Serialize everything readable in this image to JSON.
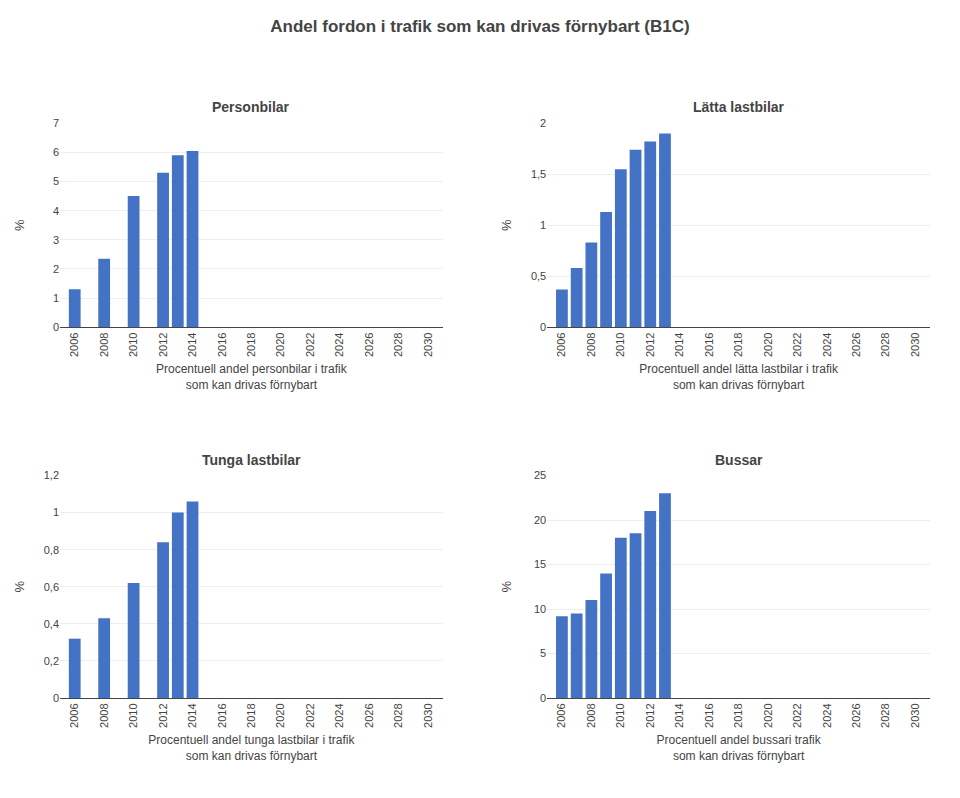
{
  "title": "Andel fordon i trafik som kan drivas förnybart (B1C)",
  "chart_data": [
    {
      "type": "bar",
      "title": "Personbilar",
      "x": [
        2006,
        2008,
        2010,
        2012,
        2013,
        2014
      ],
      "values": [
        1.3,
        2.35,
        4.5,
        5.3,
        5.9,
        6.05
      ],
      "color": "#4472C4",
      "xlim": [
        2005,
        2031
      ],
      "xticks": [
        2006,
        2008,
        2010,
        2012,
        2014,
        2016,
        2018,
        2020,
        2022,
        2024,
        2026,
        2028,
        2030
      ],
      "ylim": [
        0,
        7
      ],
      "yticks": [
        0,
        1,
        2,
        3,
        4,
        5,
        6,
        7
      ],
      "grid": "y",
      "xlabel": "Procentuell andel personbilar i trafik\nsom kan drivas förnybart",
      "ylabel": "%"
    },
    {
      "type": "bar",
      "title": "Lätta lastbilar",
      "x": [
        2006,
        2007,
        2008,
        2009,
        2010,
        2011,
        2012,
        2013
      ],
      "values": [
        0.37,
        0.58,
        0.83,
        1.13,
        1.55,
        1.74,
        1.82,
        1.9
      ],
      "color": "#4472C4",
      "xlim": [
        2005,
        2031
      ],
      "xticks": [
        2006,
        2008,
        2010,
        2012,
        2014,
        2016,
        2018,
        2020,
        2022,
        2024,
        2026,
        2028,
        2030
      ],
      "ylim": [
        0,
        2
      ],
      "yticks": [
        0,
        {
          "value": 0.5,
          "label": "0,5"
        },
        1,
        {
          "value": 1.5,
          "label": "1,5"
        },
        2
      ],
      "grid": "y",
      "xlabel": "Procentuell andel lätta lastbilar i trafik\nsom kan drivas förnybart",
      "ylabel": "%"
    },
    {
      "type": "bar",
      "title": "Tunga lastbilar",
      "x": [
        2006,
        2008,
        2010,
        2012,
        2013,
        2014
      ],
      "values": [
        0.32,
        0.43,
        0.62,
        0.84,
        1.0,
        1.06
      ],
      "color": "#4472C4",
      "xlim": [
        2005,
        2031
      ],
      "xticks": [
        2006,
        2008,
        2010,
        2012,
        2014,
        2016,
        2018,
        2020,
        2022,
        2024,
        2026,
        2028,
        2030
      ],
      "ylim": [
        0,
        1.2
      ],
      "yticks": [
        0,
        {
          "value": 0.2,
          "label": "0,2"
        },
        {
          "value": 0.4,
          "label": "0,4"
        },
        {
          "value": 0.6,
          "label": "0,6"
        },
        {
          "value": 0.8,
          "label": "0,8"
        },
        1,
        {
          "value": 1.2,
          "label": "1,2"
        }
      ],
      "grid": "y",
      "xlabel": "Procentuell andel tunga lastbilar i trafik\nsom kan drivas förnybart",
      "ylabel": "%"
    },
    {
      "type": "bar",
      "title": "Bussar",
      "x": [
        2006,
        2007,
        2008,
        2009,
        2010,
        2011,
        2012,
        2013
      ],
      "values": [
        9.2,
        9.5,
        11.0,
        14.0,
        18.0,
        18.5,
        21.0,
        23.0
      ],
      "color": "#4472C4",
      "xlim": [
        2005,
        2031
      ],
      "xticks": [
        2006,
        2008,
        2010,
        2012,
        2014,
        2016,
        2018,
        2020,
        2022,
        2024,
        2026,
        2028,
        2030
      ],
      "ylim": [
        0,
        25
      ],
      "yticks": [
        0,
        5,
        10,
        15,
        20,
        25
      ],
      "grid": "y",
      "xlabel": "Procentuell andel bussari trafik\nsom kan drivas förnybart",
      "ylabel": "%"
    }
  ]
}
